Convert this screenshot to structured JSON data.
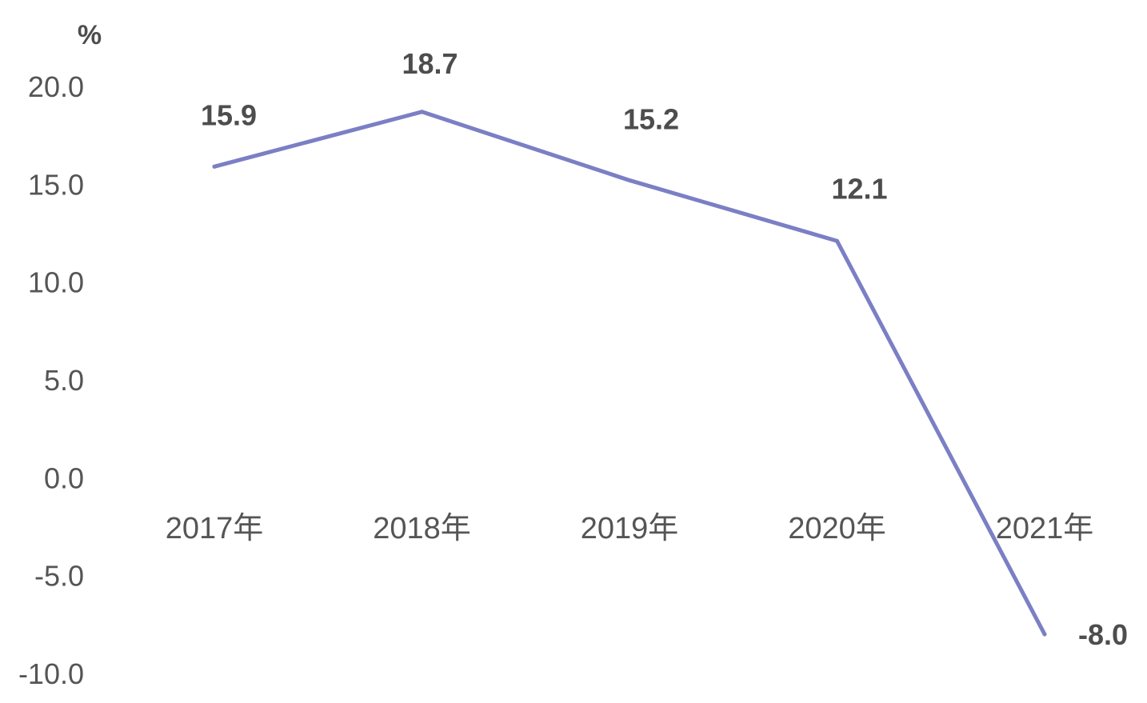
{
  "chart_data": {
    "type": "line",
    "title": "",
    "xlabel": "",
    "ylabel": "%",
    "categories": [
      "2017年",
      "2018年",
      "2019年",
      "2020年",
      "2021年"
    ],
    "series": [
      {
        "values": [
          15.9,
          18.7,
          15.2,
          12.1,
          -8.0
        ],
        "color": "#7b7fc4"
      }
    ],
    "data_labels": [
      "15.9",
      "18.7",
      "15.2",
      "12.1",
      "-8.0"
    ],
    "y_ticks": [
      "20.0",
      "15.0",
      "10.0",
      "5.0",
      "0.0",
      "-5.0",
      "-10.0"
    ],
    "y_tick_values": [
      20,
      15,
      10,
      5,
      0,
      -5,
      -10
    ],
    "ylim": [
      -10,
      20
    ],
    "grid": false,
    "legend": "none"
  }
}
